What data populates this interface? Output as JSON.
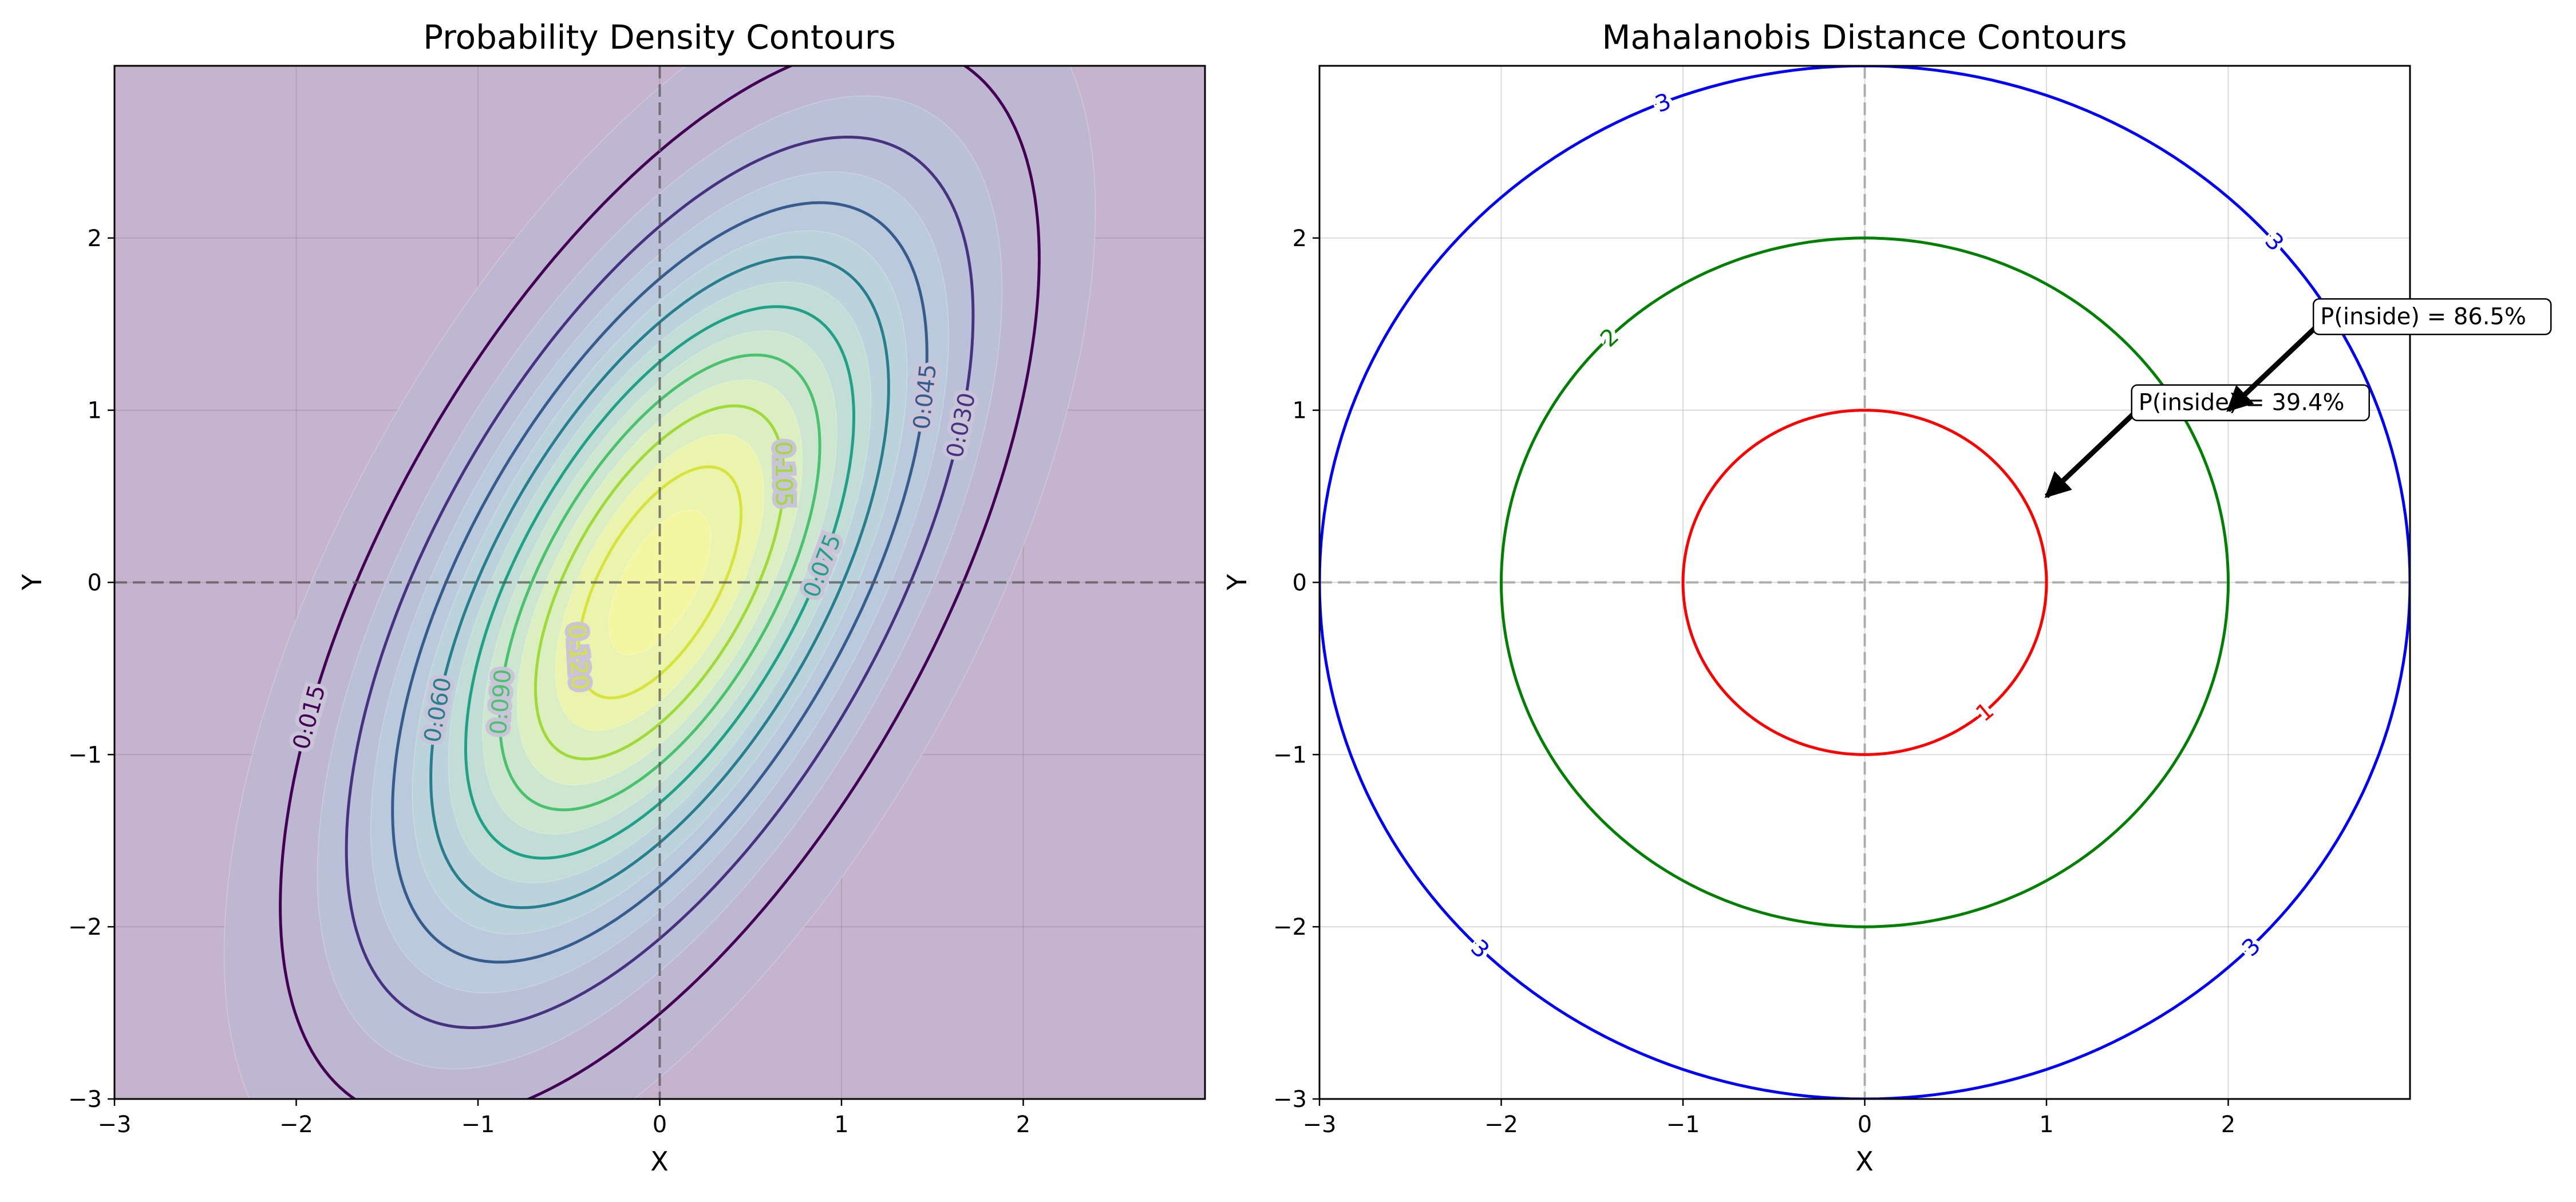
{
  "chart_data": [
    {
      "type": "contour",
      "title": "Probability Density Contours",
      "xlabel": "X",
      "ylabel": "Y",
      "xlim": [
        -3,
        3
      ],
      "ylim": [
        -3,
        3
      ],
      "xticks": [
        -3,
        -2,
        -1,
        0,
        1,
        2
      ],
      "yticks": [
        -3,
        -2,
        -1,
        0,
        1,
        2
      ],
      "grid": true,
      "reference_lines": {
        "x": 0,
        "y": 0,
        "style": "dashed",
        "color": "#555555"
      },
      "distribution": {
        "mean": [
          0,
          0
        ],
        "sigma_x": 1,
        "sigma_y": 1.5,
        "rho": 0.6
      },
      "levels": [
        0.015,
        0.03,
        0.045,
        0.06,
        0.075,
        0.09,
        0.105,
        0.12
      ],
      "level_labels": [
        "0.015",
        "0.030",
        "0.045",
        "0.060",
        "0.075",
        "0.090",
        "0.105",
        "0.120"
      ],
      "level_colors": [
        "#440154",
        "#46327e",
        "#365c8d",
        "#277f8e",
        "#1fa187",
        "#4ac16d",
        "#a0da39",
        "#d6e33a"
      ],
      "colormap": "viridis",
      "fill_alpha": 0.3
    },
    {
      "type": "contour",
      "title": "Mahalanobis Distance Contours",
      "xlabel": "X",
      "ylabel": "Y",
      "xlim": [
        -3,
        3
      ],
      "ylim": [
        -3,
        3
      ],
      "xticks": [
        -3,
        -2,
        -1,
        0,
        1,
        2
      ],
      "yticks": [
        -3,
        -2,
        -1,
        0,
        1,
        2
      ],
      "grid": true,
      "reference_lines": {
        "x": 0,
        "y": 0,
        "style": "dashed",
        "color": "#999999"
      },
      "series": [
        {
          "level": 1,
          "label": "1",
          "color": "#ff0000"
        },
        {
          "level": 2,
          "label": "2",
          "color": "#008000"
        },
        {
          "level": 3,
          "label": "3",
          "color": "#0000ff"
        }
      ],
      "annotations": [
        {
          "text": "P(inside) = 39.4%",
          "point": [
            1.0,
            0.5
          ],
          "text_at": [
            1.5,
            1.0
          ]
        },
        {
          "text": "P(inside) = 86.5%",
          "point": [
            2.0,
            1.0
          ],
          "text_at": [
            2.5,
            1.5
          ]
        }
      ]
    }
  ]
}
